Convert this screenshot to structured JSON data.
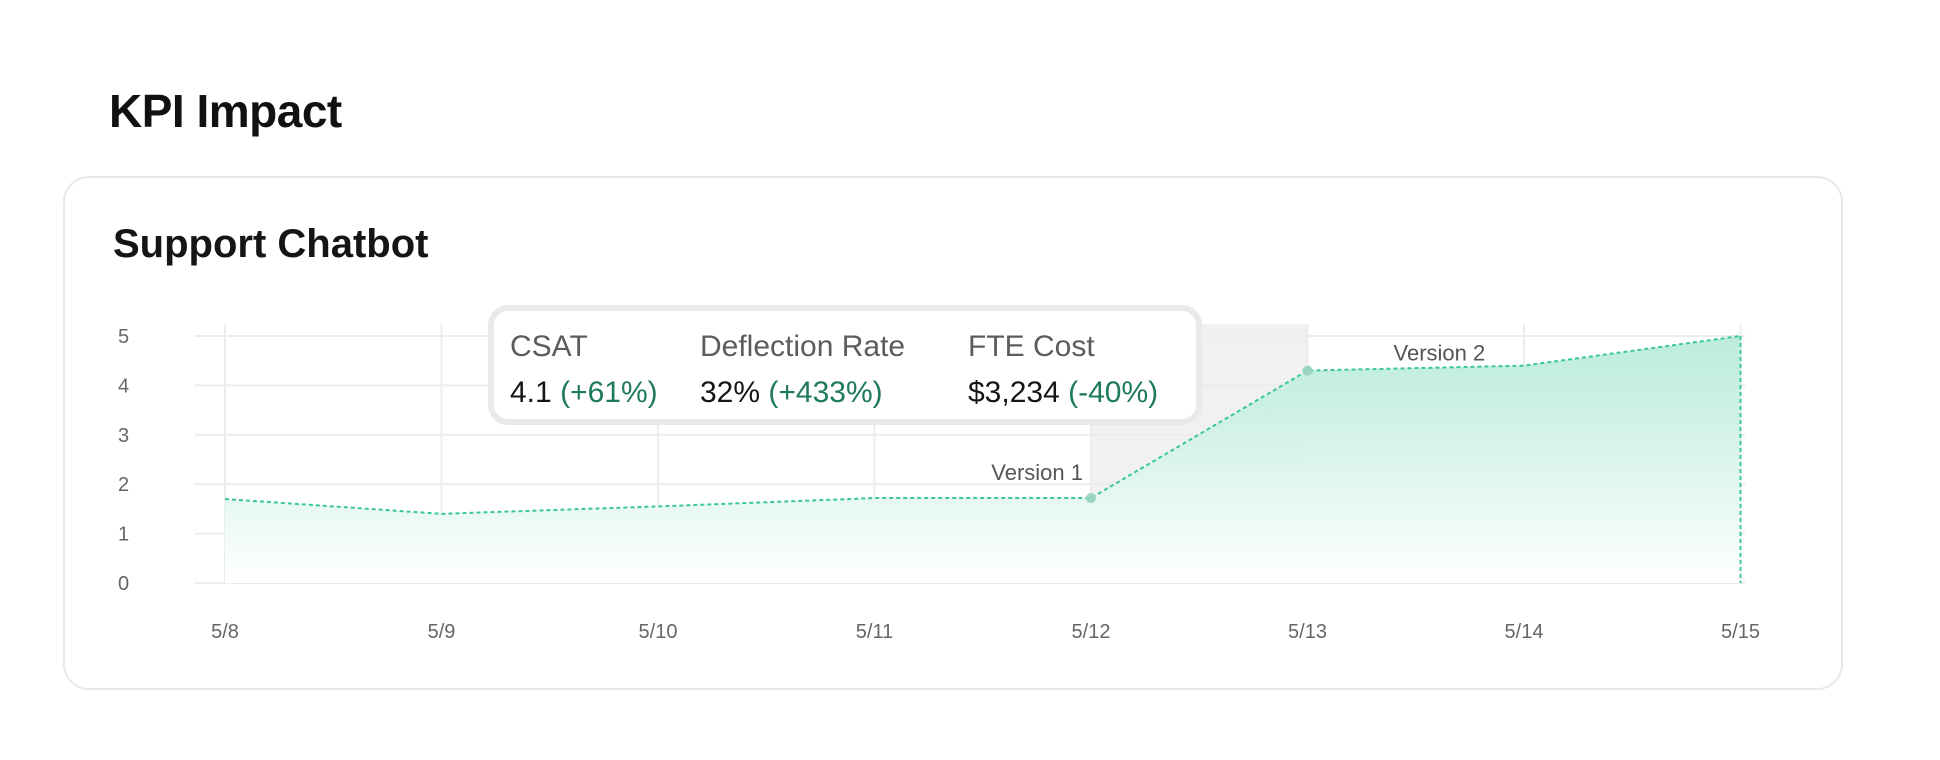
{
  "page": {
    "title": "KPI Impact"
  },
  "card": {
    "title": "Support Chatbot"
  },
  "tooltip": {
    "metrics": [
      {
        "label": "CSAT",
        "value": "4.1",
        "change": "(+61%)"
      },
      {
        "label": "Deflection Rate",
        "value": "32%",
        "change": "(+433%)"
      },
      {
        "label": "FTE Cost",
        "value": "$3,234",
        "change": "(-40%)"
      }
    ]
  },
  "colors": {
    "line": "#3cc79b",
    "fill_top": "#b4ead8",
    "change_text": "#1e7a57",
    "highlight_band": "#f1f1f1",
    "grid": "#ececec"
  },
  "chart_data": {
    "type": "area",
    "categories": [
      "5/8",
      "5/9",
      "5/10",
      "5/11",
      "5/12",
      "5/13",
      "5/14",
      "5/15"
    ],
    "values": [
      1.7,
      1.4,
      1.55,
      1.72,
      1.72,
      4.3,
      4.4,
      5.0
    ],
    "ylim": [
      0,
      5
    ],
    "yticks": [
      "0",
      "1",
      "2",
      "3",
      "4",
      "5"
    ],
    "grid": true,
    "highlight_range": [
      "5/12",
      "5/13"
    ],
    "annotations": [
      {
        "label": "Version 1",
        "at": "5/12",
        "value": 1.72
      },
      {
        "label": "Version 2",
        "at": "5/13",
        "value": 4.3
      }
    ]
  }
}
